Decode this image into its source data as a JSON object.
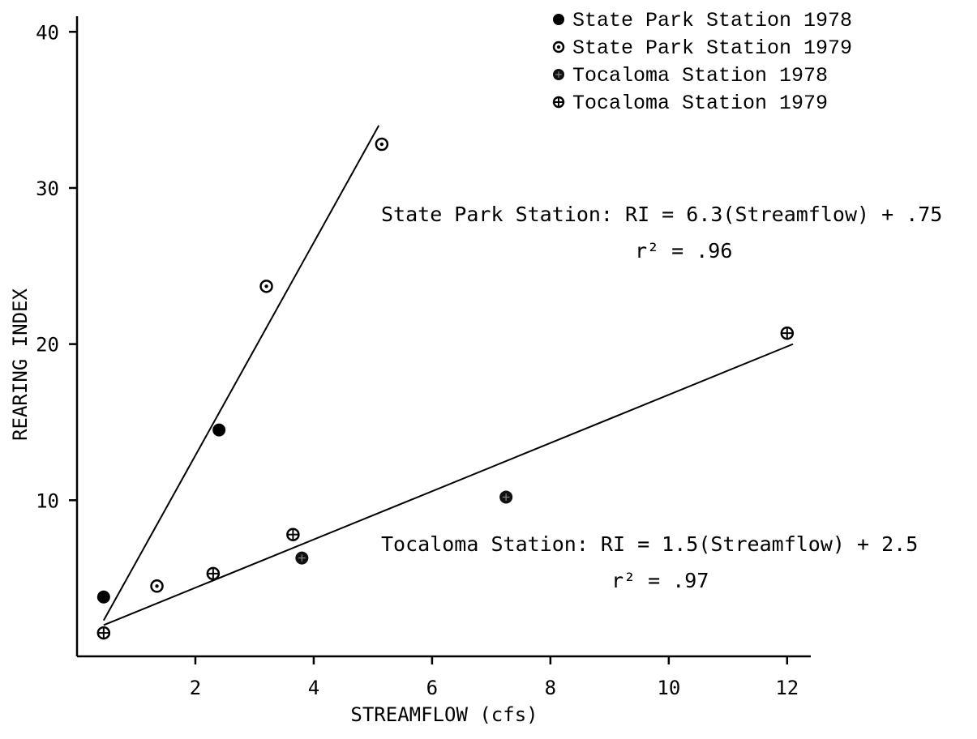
{
  "chart_data": {
    "type": "scatter",
    "title": "",
    "xlabel": "STREAMFLOW (cfs)",
    "ylabel": "REARING INDEX",
    "xlim": [
      0,
      12.4
    ],
    "ylim": [
      0,
      41
    ],
    "xticks": [
      2,
      4,
      6,
      8,
      10,
      12
    ],
    "yticks": [
      10,
      20,
      30,
      40
    ],
    "grid": false,
    "legend_position": "top-right",
    "series": [
      {
        "name": "State Park Station 1978",
        "marker": "filled-circle",
        "points": [
          [
            0.45,
            3.8
          ],
          [
            2.4,
            14.5
          ]
        ]
      },
      {
        "name": "State Park Station 1979",
        "marker": "dotted-circle",
        "points": [
          [
            1.35,
            4.5
          ],
          [
            3.2,
            23.7
          ],
          [
            5.15,
            32.8
          ]
        ]
      },
      {
        "name": "Tocaloma Station 1978",
        "marker": "dark-circle",
        "points": [
          [
            3.8,
            6.3
          ],
          [
            7.25,
            10.2
          ]
        ]
      },
      {
        "name": "Tocaloma Station 1979",
        "marker": "crossed-circle",
        "points": [
          [
            0.45,
            1.5
          ],
          [
            2.3,
            5.3
          ],
          [
            3.65,
            7.8
          ],
          [
            12.0,
            20.7
          ]
        ]
      }
    ],
    "fit_lines": [
      {
        "name": "State Park Station",
        "points": [
          [
            0.45,
            2.3
          ],
          [
            5.1,
            34.0
          ]
        ]
      },
      {
        "name": "Tocaloma Station",
        "points": [
          [
            0.45,
            2.0
          ],
          [
            12.1,
            20.0
          ]
        ]
      }
    ],
    "annotations": [
      {
        "lines": [
          "State Park Station: RI = 6.3(Streamflow) + .75",
          "r² = .96"
        ]
      },
      {
        "lines": [
          "Tocaloma Station: RI = 1.5(Streamflow) + 2.5",
          "r² = .97"
        ]
      }
    ]
  }
}
